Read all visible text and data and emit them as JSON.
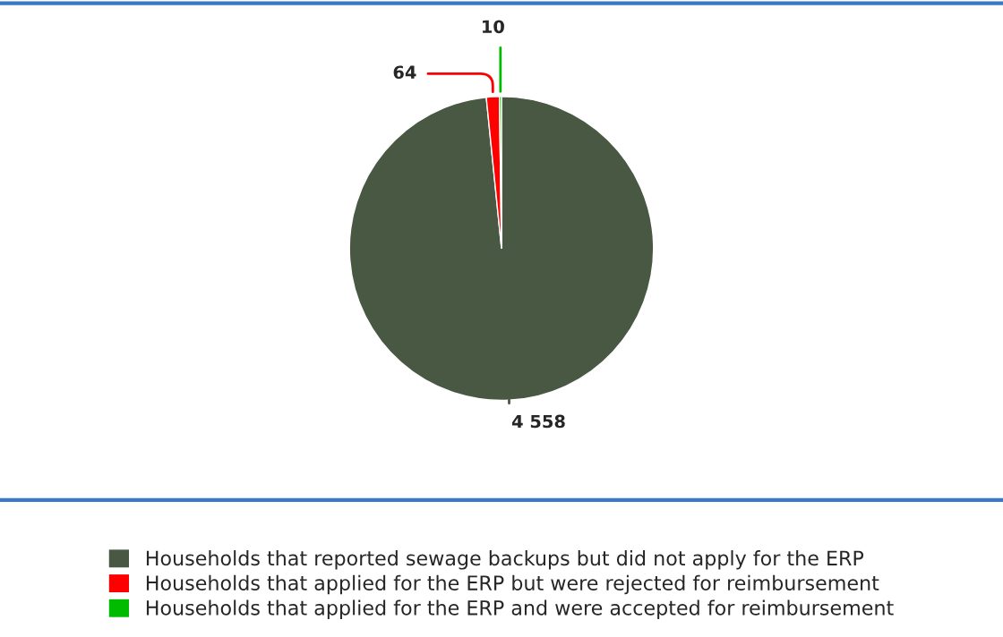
{
  "chart_data": {
    "type": "pie",
    "categories": [
      "Households that reported sewage backups but did not apply for the ERP",
      "Households that applied for the ERP but were rejected for reimbursement",
      "Households that applied for the ERP and were accepted for reimbursement"
    ],
    "values": [
      4558,
      64,
      10
    ],
    "colors": [
      "#485843",
      "#ff0000",
      "#00bb00"
    ],
    "value_labels": [
      "4 558",
      "64",
      "10"
    ],
    "legend": "bottom"
  }
}
